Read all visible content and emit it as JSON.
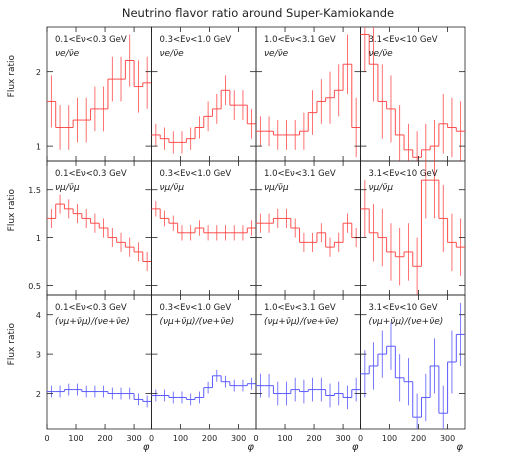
{
  "figure": {
    "title": "Neutrino flavor ratio around Super-Kamiokande",
    "ylabel": "Flux ratio",
    "xlabel": "φ"
  },
  "chart_data": [
    {
      "type": "histogram",
      "row": 0,
      "col": 0,
      "energy_label": "0.1<Eν<0.3 GeV",
      "ratio_label": "νe/ν̄e",
      "color": "#ff4d4d",
      "xlim": [
        0,
        360
      ],
      "ylim": [
        0.8,
        2.6
      ],
      "yticks": [
        1,
        2
      ],
      "bin_edges": [
        0,
        30,
        60,
        90,
        120,
        150,
        180,
        210,
        240,
        270,
        300,
        330,
        360
      ],
      "values": [
        1.6,
        1.25,
        1.25,
        1.35,
        1.35,
        1.5,
        1.5,
        1.9,
        1.9,
        2.15,
        1.8,
        1.85
      ],
      "errors": [
        0.35,
        0.3,
        0.3,
        0.3,
        0.3,
        0.3,
        0.3,
        0.3,
        0.3,
        0.35,
        0.35,
        0.35
      ]
    },
    {
      "type": "histogram",
      "row": 0,
      "col": 1,
      "energy_label": "0.3<Eν<1.0 GeV",
      "ratio_label": "νe/ν̄e",
      "color": "#ff4d4d",
      "xlim": [
        0,
        360
      ],
      "ylim": [
        0.8,
        2.6
      ],
      "yticks": [
        1,
        2
      ],
      "bin_edges": [
        0,
        30,
        60,
        90,
        120,
        150,
        180,
        210,
        240,
        270,
        300,
        330,
        360
      ],
      "values": [
        1.15,
        1.1,
        1.05,
        1.05,
        1.1,
        1.25,
        1.4,
        1.5,
        1.75,
        1.55,
        1.55,
        1.3
      ],
      "errors": [
        0.15,
        0.15,
        0.15,
        0.15,
        0.15,
        0.15,
        0.2,
        0.2,
        0.2,
        0.2,
        0.2,
        0.2
      ]
    },
    {
      "type": "histogram",
      "row": 0,
      "col": 2,
      "energy_label": "1.0<Eν<3.1 GeV",
      "ratio_label": "νe/ν̄e",
      "color": "#ff4d4d",
      "xlim": [
        0,
        360
      ],
      "ylim": [
        0.8,
        2.6
      ],
      "yticks": [
        1,
        2
      ],
      "bin_edges": [
        0,
        30,
        60,
        90,
        120,
        150,
        180,
        210,
        240,
        270,
        300,
        330,
        360
      ],
      "values": [
        1.2,
        1.2,
        1.15,
        1.15,
        1.15,
        1.2,
        1.45,
        1.6,
        1.65,
        1.75,
        2.1,
        1.25
      ],
      "errors": [
        0.2,
        0.2,
        0.2,
        0.2,
        0.2,
        0.25,
        0.3,
        0.3,
        0.35,
        0.35,
        0.4,
        0.4
      ]
    },
    {
      "type": "histogram",
      "row": 0,
      "col": 3,
      "energy_label": "3.1<Eν<10 GeV",
      "ratio_label": "νe/ν̄e",
      "color": "#ff4d4d",
      "xlim": [
        0,
        360
      ],
      "ylim": [
        0.8,
        2.6
      ],
      "yticks": [
        1,
        2
      ],
      "bin_edges": [
        0,
        30,
        60,
        90,
        120,
        150,
        180,
        210,
        240,
        270,
        300,
        330,
        360
      ],
      "values": [
        2.5,
        2.1,
        1.6,
        1.5,
        1.15,
        0.95,
        0.85,
        0.95,
        1.0,
        1.3,
        1.25,
        1.2
      ],
      "errors": [
        0.5,
        0.5,
        0.5,
        0.45,
        0.4,
        0.35,
        0.35,
        0.35,
        0.35,
        0.4,
        0.4,
        0.4
      ]
    },
    {
      "type": "histogram",
      "row": 1,
      "col": 0,
      "energy_label": "0.1<Eν<0.3 GeV",
      "ratio_label": "νμ/ν̄μ",
      "color": "#ff4d4d",
      "xlim": [
        0,
        360
      ],
      "ylim": [
        0.4,
        1.8
      ],
      "yticks": [
        0.5,
        1,
        1.5
      ],
      "bin_edges": [
        0,
        30,
        60,
        90,
        120,
        150,
        180,
        210,
        240,
        270,
        300,
        330,
        360
      ],
      "values": [
        1.2,
        1.35,
        1.3,
        1.25,
        1.2,
        1.15,
        1.1,
        1.0,
        0.95,
        0.9,
        0.85,
        0.75
      ],
      "errors": [
        0.1,
        0.1,
        0.1,
        0.1,
        0.1,
        0.1,
        0.1,
        0.1,
        0.1,
        0.1,
        0.1,
        0.1
      ]
    },
    {
      "type": "histogram",
      "row": 1,
      "col": 1,
      "energy_label": "0.3<Eν<1.0 GeV",
      "ratio_label": "νμ/ν̄μ",
      "color": "#ff4d4d",
      "xlim": [
        0,
        360
      ],
      "ylim": [
        0.4,
        1.8
      ],
      "yticks": [
        0.5,
        1,
        1.5
      ],
      "bin_edges": [
        0,
        30,
        60,
        90,
        120,
        150,
        180,
        210,
        240,
        270,
        300,
        330,
        360
      ],
      "values": [
        1.3,
        1.2,
        1.15,
        1.05,
        1.05,
        1.1,
        1.05,
        1.05,
        1.05,
        1.05,
        1.05,
        1.1
      ],
      "errors": [
        0.08,
        0.08,
        0.08,
        0.08,
        0.08,
        0.08,
        0.08,
        0.08,
        0.08,
        0.08,
        0.08,
        0.08
      ]
    },
    {
      "type": "histogram",
      "row": 1,
      "col": 2,
      "energy_label": "1.0<Eν<3.1 GeV",
      "ratio_label": "νμ/ν̄μ",
      "color": "#ff4d4d",
      "xlim": [
        0,
        360
      ],
      "ylim": [
        0.4,
        1.8
      ],
      "yticks": [
        0.5,
        1,
        1.5
      ],
      "bin_edges": [
        0,
        30,
        60,
        90,
        120,
        150,
        180,
        210,
        240,
        270,
        300,
        330,
        360
      ],
      "values": [
        1.15,
        1.15,
        1.2,
        1.2,
        1.1,
        0.95,
        0.95,
        1.05,
        0.9,
        0.95,
        1.15,
        1.0
      ],
      "errors": [
        0.1,
        0.1,
        0.1,
        0.1,
        0.1,
        0.1,
        0.1,
        0.1,
        0.1,
        0.1,
        0.1,
        0.1
      ]
    },
    {
      "type": "histogram",
      "row": 1,
      "col": 3,
      "energy_label": "3.1<Eν<10 GeV",
      "ratio_label": "νμ/ν̄μ",
      "color": "#ff4d4d",
      "xlim": [
        0,
        360
      ],
      "ylim": [
        0.4,
        1.8
      ],
      "yticks": [
        0.5,
        1,
        1.5
      ],
      "bin_edges": [
        0,
        30,
        60,
        90,
        120,
        150,
        180,
        210,
        240,
        270,
        300,
        330,
        360
      ],
      "values": [
        1.3,
        1.05,
        1.0,
        0.85,
        0.8,
        0.85,
        0.7,
        1.6,
        1.6,
        1.2,
        0.95,
        0.9
      ],
      "errors": [
        0.3,
        0.3,
        0.3,
        0.3,
        0.3,
        0.3,
        0.3,
        0.4,
        0.4,
        0.35,
        0.3,
        0.3
      ]
    },
    {
      "type": "histogram",
      "row": 2,
      "col": 0,
      "energy_label": "0.1<Eν<0.3 GeV",
      "ratio_label": "(νμ+ν̄μ)/(νe+ν̄e)",
      "color": "#5a5aff",
      "xlim": [
        0,
        360
      ],
      "ylim": [
        1.1,
        4.5
      ],
      "yticks": [
        2,
        3,
        4
      ],
      "bin_edges": [
        0,
        30,
        60,
        90,
        120,
        150,
        180,
        210,
        240,
        270,
        300,
        330,
        360
      ],
      "values": [
        2.05,
        2.05,
        2.1,
        2.1,
        2.05,
        2.05,
        2.05,
        2.0,
        2.0,
        2.0,
        1.85,
        1.8
      ],
      "errors": [
        0.15,
        0.15,
        0.15,
        0.15,
        0.15,
        0.15,
        0.15,
        0.15,
        0.15,
        0.15,
        0.15,
        0.15
      ]
    },
    {
      "type": "histogram",
      "row": 2,
      "col": 1,
      "energy_label": "0.3<Eν<1.0 GeV",
      "ratio_label": "(νμ+ν̄μ)/(νe+ν̄e)",
      "color": "#5a5aff",
      "xlim": [
        0,
        360
      ],
      "ylim": [
        1.1,
        4.5
      ],
      "yticks": [
        2,
        3,
        4
      ],
      "bin_edges": [
        0,
        30,
        60,
        90,
        120,
        150,
        180,
        210,
        240,
        270,
        300,
        330,
        360
      ],
      "values": [
        1.95,
        1.95,
        1.9,
        1.9,
        1.85,
        1.9,
        2.15,
        2.45,
        2.3,
        2.2,
        2.2,
        2.25
      ],
      "errors": [
        0.15,
        0.15,
        0.15,
        0.15,
        0.15,
        0.15,
        0.15,
        0.15,
        0.15,
        0.15,
        0.15,
        0.15
      ]
    },
    {
      "type": "histogram",
      "row": 2,
      "col": 2,
      "energy_label": "1.0<Eν<3.1 GeV",
      "ratio_label": "(νμ+ν̄μ)/(νe+ν̄e)",
      "color": "#5a5aff",
      "xlim": [
        0,
        360
      ],
      "ylim": [
        1.1,
        4.5
      ],
      "yticks": [
        2,
        3,
        4
      ],
      "bin_edges": [
        0,
        30,
        60,
        90,
        120,
        150,
        180,
        210,
        240,
        270,
        300,
        330,
        360
      ],
      "values": [
        2.2,
        2.2,
        2.0,
        2.0,
        2.1,
        2.05,
        2.1,
        2.1,
        1.95,
        2.0,
        1.9,
        2.1
      ],
      "errors": [
        0.3,
        0.3,
        0.3,
        0.3,
        0.3,
        0.3,
        0.3,
        0.3,
        0.3,
        0.3,
        0.3,
        0.3
      ]
    },
    {
      "type": "histogram",
      "row": 2,
      "col": 3,
      "energy_label": "3.1<Eν<10 GeV",
      "ratio_label": "(νμ+ν̄μ)/(νe+ν̄e)",
      "color": "#5a5aff",
      "xlim": [
        0,
        360
      ],
      "ylim": [
        1.1,
        4.5
      ],
      "yticks": [
        2,
        3,
        4
      ],
      "bin_edges": [
        0,
        30,
        60,
        90,
        120,
        150,
        180,
        210,
        240,
        270,
        300,
        330,
        360
      ],
      "values": [
        2.5,
        2.7,
        3.0,
        3.2,
        2.4,
        2.3,
        1.4,
        1.9,
        2.7,
        1.5,
        2.8,
        3.5
      ],
      "errors": [
        0.6,
        0.6,
        0.6,
        0.6,
        0.6,
        0.6,
        0.6,
        0.6,
        0.7,
        0.7,
        0.8,
        0.8
      ]
    }
  ],
  "x_ticks": [
    "0",
    "100",
    "200",
    "300"
  ],
  "x_tick_values": [
    0,
    100,
    200,
    300
  ]
}
